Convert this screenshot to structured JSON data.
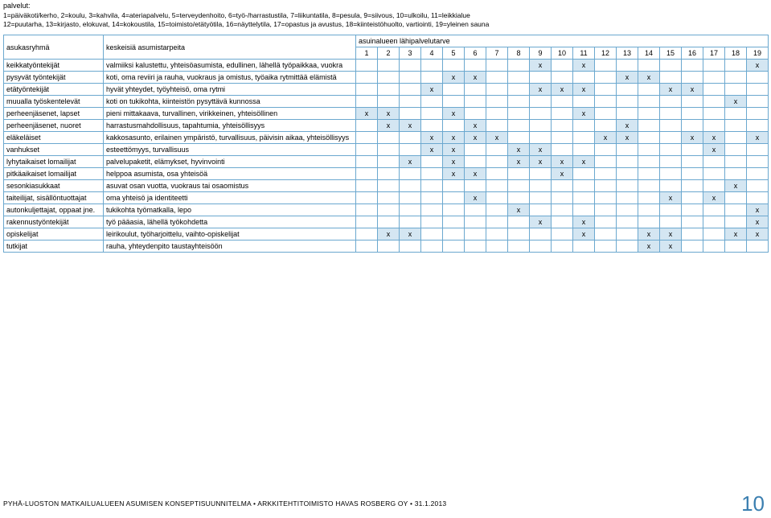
{
  "legend": {
    "title": "palvelut:",
    "line1": "1=päiväkoti/kerho, 2=koulu, 3=kahvila, 4=ateriapalvelu, 5=terveydenhoito, 6=työ-/harrastustila, 7=liikuntatila, 8=pesula, 9=siivous, 10=ulkoilu, 11=leikkialue",
    "line2": "12=puutarha, 13=kirjasto, elokuvat, 14=kokoustila, 15=toimisto/etätyötila, 16=näyttelytila, 17=opastus ja avustus, 18=kiinteistöhuolto, vartiointi, 19=yleinen sauna"
  },
  "table": {
    "headers": {
      "group": "asukasryhmä",
      "needs": "keskeisiä asumistarpeita",
      "services": "asuinalueen lähipalvelutarve"
    },
    "colNums": [
      "1",
      "2",
      "3",
      "4",
      "5",
      "6",
      "7",
      "8",
      "9",
      "10",
      "11",
      "12",
      "13",
      "14",
      "15",
      "16",
      "17",
      "18",
      "19"
    ],
    "rows": [
      {
        "group": "keikkatyöntekijät",
        "needs": "valmiiksi kalustettu, yhteisöasumista, edullinen, lähellä työpaikkaa, vuokra",
        "x": [
          9,
          11,
          19
        ]
      },
      {
        "group": "pysyvät työntekijät",
        "needs": "koti, oma reviiri ja rauha, vuokraus ja omistus, työaika rytmittää elämistä",
        "x": [
          5,
          6,
          13,
          14
        ]
      },
      {
        "group": "etätyöntekijät",
        "needs": "hyvät yhteydet, työyhteisö, oma rytmi",
        "x": [
          4,
          9,
          10,
          11,
          15,
          16
        ]
      },
      {
        "group": "muualla työskentelevät",
        "needs": "koti on tukikohta, kiinteistön pysyttävä kunnossa",
        "x": [
          18
        ]
      },
      {
        "group": "perheenjäsenet, lapset",
        "needs": "pieni mittakaava, turvallinen, virikkeinen, yhteisöllinen",
        "x": [
          1,
          2,
          5,
          11
        ]
      },
      {
        "group": "perheenjäsenet, nuoret",
        "needs": "harrastusmahdollisuus, tapahtumia, yhteisöllisyys",
        "x": [
          2,
          3,
          6,
          13
        ]
      },
      {
        "group": "eläkeläiset",
        "needs": "kakkosasunto, erilainen ympäristö, turvallisuus, päivisin aikaa, yhteisöllisyys",
        "x": [
          4,
          5,
          6,
          7,
          12,
          13,
          16,
          17,
          19
        ]
      },
      {
        "group": "vanhukset",
        "needs": "esteettömyys, turvallisuus",
        "x": [
          4,
          5,
          8,
          9,
          17
        ]
      },
      {
        "group": "lyhytaikaiset lomailijat",
        "needs": "palvelupaketit, elämykset, hyvinvointi",
        "x": [
          3,
          5,
          8,
          9,
          10,
          11
        ]
      },
      {
        "group": "pitkäaikaiset lomailijat",
        "needs": "helppoa asumista, osa yhteisöä",
        "x": [
          5,
          6,
          10
        ]
      },
      {
        "group": "sesonkiasukkaat",
        "needs": "asuvat osan vuotta, vuokraus tai osaomistus",
        "x": [
          18
        ]
      },
      {
        "group": "taiteilijat, sisällöntuottajat",
        "needs": "oma yhteisö ja identiteetti",
        "x": [
          6,
          15,
          17
        ]
      },
      {
        "group": "autonkuljettajat, oppaat jne.",
        "needs": "tukikohta työmatkalla, lepo",
        "x": [
          8,
          19
        ]
      },
      {
        "group": "rakennustyöntekijät",
        "needs": "työ pääasia, lähellä työkohdetta",
        "x": [
          9,
          11,
          19
        ]
      },
      {
        "group": "opiskelijat",
        "needs": "leirikoulut, työharjoittelu, vaihto-opiskelijat",
        "x": [
          2,
          3,
          11,
          14,
          15,
          18,
          19
        ]
      },
      {
        "group": "tutkijat",
        "needs": "rauha, yhteydenpito taustayhteisöön",
        "x": [
          14,
          15
        ]
      }
    ],
    "mark": "x",
    "markBg": "#d4e6f2",
    "borderColor": "#6ba8cf"
  },
  "footer": {
    "text": "PYHÄ-LUOSTON MATKAILUALUEEN ASUMISEN KONSEPTISUUNNITELMA  •  ARKKITEHTITOIMISTO HAVAS ROSBERG OY  •  31.1.2013",
    "pageNumber": "10"
  },
  "colors": {
    "accent": "#3b7fb0",
    "cellHighlight": "#d4e6f2",
    "border": "#6ba8cf"
  }
}
